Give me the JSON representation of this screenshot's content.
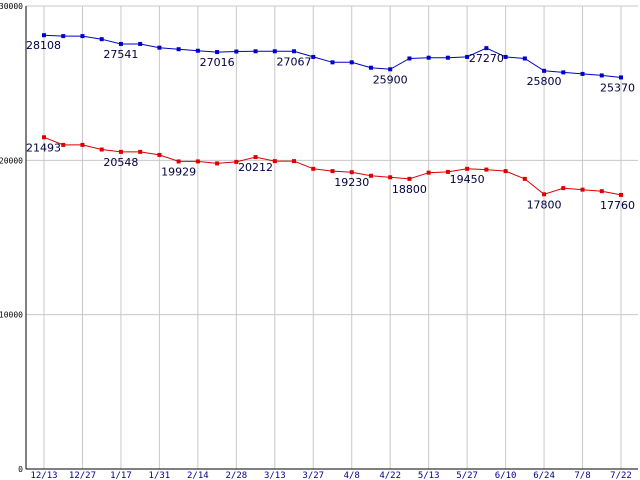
{
  "chart_data": {
    "type": "line",
    "title": "",
    "xlabel": "",
    "ylabel": "",
    "ylim": [
      0,
      30000
    ],
    "y_ticks": [
      0,
      10000,
      20000,
      30000
    ],
    "y_tick_labels": [
      "0",
      "10000",
      "20000",
      "30000"
    ],
    "grid": true,
    "legend": "none",
    "x_tick_labels": [
      "12/13",
      "12/27",
      "1/17",
      "1/31",
      "2/14",
      "2/28",
      "3/13",
      "3/27",
      "4/8",
      "4/22",
      "5/13",
      "5/27",
      "6/10",
      "6/24",
      "7/8",
      "7/22"
    ],
    "series": [
      {
        "color": "#0000cc",
        "values": [
          28108,
          28050,
          28050,
          27850,
          27541,
          27541,
          27300,
          27200,
          27100,
          27016,
          27050,
          27067,
          27067,
          27067,
          26700,
          26350,
          26350,
          26000,
          25900,
          26600,
          26650,
          26650,
          26700,
          27270,
          26700,
          26600,
          25800,
          25700,
          25600,
          25500,
          25370
        ],
        "labels": [
          {
            "i": 0,
            "text": "28108"
          },
          {
            "i": 4,
            "text": "27541"
          },
          {
            "i": 9,
            "text": "27016"
          },
          {
            "i": 13,
            "text": "27067"
          },
          {
            "i": 18,
            "text": "25900"
          },
          {
            "i": 23,
            "text": "27270"
          },
          {
            "i": 26,
            "text": "25800"
          },
          {
            "i": 30,
            "text": "25370"
          }
        ]
      },
      {
        "color": "#dd0000",
        "values": [
          21493,
          21000,
          21000,
          20700,
          20548,
          20548,
          20350,
          19929,
          19929,
          19800,
          19900,
          20212,
          19950,
          19950,
          19450,
          19300,
          19230,
          19000,
          18900,
          18800,
          19200,
          19250,
          19450,
          19400,
          19300,
          18800,
          17800,
          18200,
          18100,
          18000,
          17760
        ],
        "labels": [
          {
            "i": 0,
            "text": "21493"
          },
          {
            "i": 4,
            "text": "20548"
          },
          {
            "i": 7,
            "text": "19929"
          },
          {
            "i": 11,
            "text": "20212"
          },
          {
            "i": 16,
            "text": "19230"
          },
          {
            "i": 19,
            "text": "18800"
          },
          {
            "i": 22,
            "text": "19450"
          },
          {
            "i": 26,
            "text": "17800"
          },
          {
            "i": 30,
            "text": "17760"
          }
        ]
      }
    ]
  }
}
